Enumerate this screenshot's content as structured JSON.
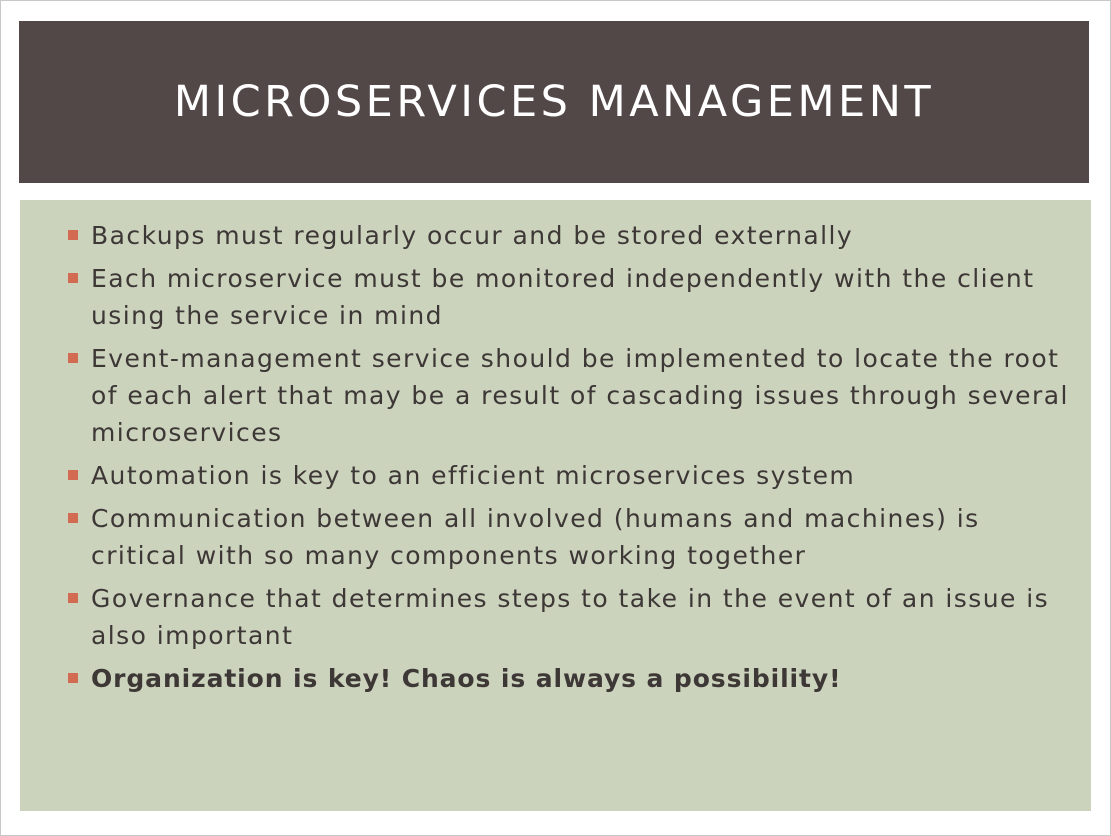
{
  "slide": {
    "title": "MICROSERVICES MANAGEMENT",
    "colors": {
      "title_bar": "#524847",
      "title_text": "#ffffff",
      "content_bg": "#ccd3bd",
      "bullet_marker": "#d26b51",
      "body_text": "#3d3736"
    },
    "bullets": [
      {
        "text": "Backups must regularly occur and be stored externally",
        "bold": false
      },
      {
        "text": "Each microservice must be monitored independently with the client using the service in mind",
        "bold": false
      },
      {
        "text": "Event-management service should be implemented to locate the root of each alert that may be a result of cascading issues through several microservices",
        "bold": false
      },
      {
        "text": "Automation is key to an efficient microservices system",
        "bold": false
      },
      {
        "text": "Communication between all involved (humans and machines) is critical with so many components working together",
        "bold": false
      },
      {
        "text": "Governance that determines steps to take in the event of an issue is also important",
        "bold": false
      },
      {
        "text": "Organization is key!  Chaos is always a possibility!",
        "bold": true
      }
    ]
  }
}
